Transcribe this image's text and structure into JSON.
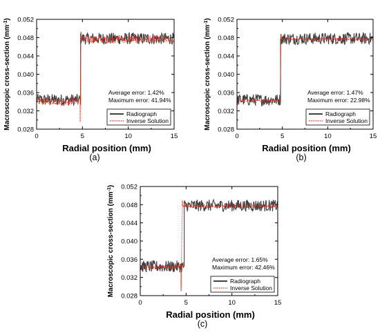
{
  "colors": {
    "radiograph": "#404040",
    "inverse": "#e8321e",
    "axis": "#000000",
    "background": "#ffffff"
  },
  "chart_data": [
    {
      "type": "line",
      "panel_label": "(a)",
      "xlabel": "Radial position (mm)",
      "ylabel_main": "Macroscopic cross-section (mm",
      "ylabel_sup": "-1",
      "ylabel_close": ")",
      "xlim": [
        0,
        15
      ],
      "ylim": [
        0.028,
        0.052
      ],
      "xticks": [
        0,
        5,
        10,
        15
      ],
      "yticks": [
        0.028,
        0.032,
        0.036,
        0.04,
        0.044,
        0.048,
        0.052
      ],
      "grid": false,
      "legend_position": "bottom-right",
      "annotation": [
        "Average error: 1.42%",
        "Maximum error: 41.94%"
      ],
      "series": [
        {
          "name": "Radiograph",
          "style": "solid",
          "x": [
            0,
            4.8,
            4.8,
            15
          ],
          "y": [
            0.0344,
            0.0344,
            0.0478,
            0.0478
          ],
          "noise_band": 0.0013
        },
        {
          "name": "Inverse Solution",
          "style": "dotted",
          "x": [
            0,
            4.75,
            4.75,
            4.85,
            4.85,
            15
          ],
          "y": [
            0.0341,
            0.0341,
            0.0296,
            0.0492,
            0.0476,
            0.0476
          ],
          "noise_band": 0.0008
        }
      ]
    },
    {
      "type": "line",
      "panel_label": "(b)",
      "xlabel": "Radial position (mm)",
      "ylabel_main": "Macroscopic cross-section (mm",
      "ylabel_sup": "-1",
      "ylabel_close": ")",
      "xlim": [
        0,
        15
      ],
      "ylim": [
        0.028,
        0.052
      ],
      "xticks": [
        0,
        5,
        10,
        15
      ],
      "yticks": [
        0.028,
        0.032,
        0.036,
        0.04,
        0.044,
        0.048,
        0.052
      ],
      "grid": false,
      "legend_position": "bottom-right",
      "annotation": [
        "Average error: 1.47%",
        "Maximum error: 22.98%"
      ],
      "series": [
        {
          "name": "Radiograph",
          "style": "solid",
          "x": [
            0,
            4.8,
            4.8,
            15
          ],
          "y": [
            0.0344,
            0.0344,
            0.0478,
            0.0478
          ],
          "noise_band": 0.0013
        },
        {
          "name": "Inverse Solution",
          "style": "dotted",
          "x": [
            0,
            4.75,
            4.75,
            4.85,
            4.85,
            15
          ],
          "y": [
            0.0343,
            0.0343,
            0.0335,
            0.0486,
            0.0477,
            0.0477
          ],
          "noise_band": 0.0003
        }
      ]
    },
    {
      "type": "line",
      "panel_label": "(c)",
      "xlabel": "Radial position (mm)",
      "ylabel_main": "Macroscopic cross-section (mm",
      "ylabel_sup": "-1",
      "ylabel_close": ")",
      "xlim": [
        0,
        15
      ],
      "ylim": [
        0.028,
        0.052
      ],
      "xticks": [
        0,
        5,
        10,
        15
      ],
      "yticks": [
        0.028,
        0.032,
        0.036,
        0.04,
        0.044,
        0.048,
        0.052
      ],
      "grid": false,
      "legend_position": "bottom-right",
      "annotation": [
        "Average error: 1.65%",
        "Maximum error: 42.46%"
      ],
      "series": [
        {
          "name": "Radiograph",
          "style": "solid",
          "x": [
            0,
            4.8,
            4.8,
            15
          ],
          "y": [
            0.0344,
            0.0344,
            0.0478,
            0.0478
          ],
          "noise_band": 0.0013
        },
        {
          "name": "Inverse Solution",
          "style": "dotted",
          "x": [
            0,
            4.45,
            4.45,
            4.6,
            4.6,
            15
          ],
          "y": [
            0.0343,
            0.0343,
            0.0293,
            0.0489,
            0.0477,
            0.0477
          ],
          "noise_band": 0.0004
        }
      ]
    }
  ]
}
